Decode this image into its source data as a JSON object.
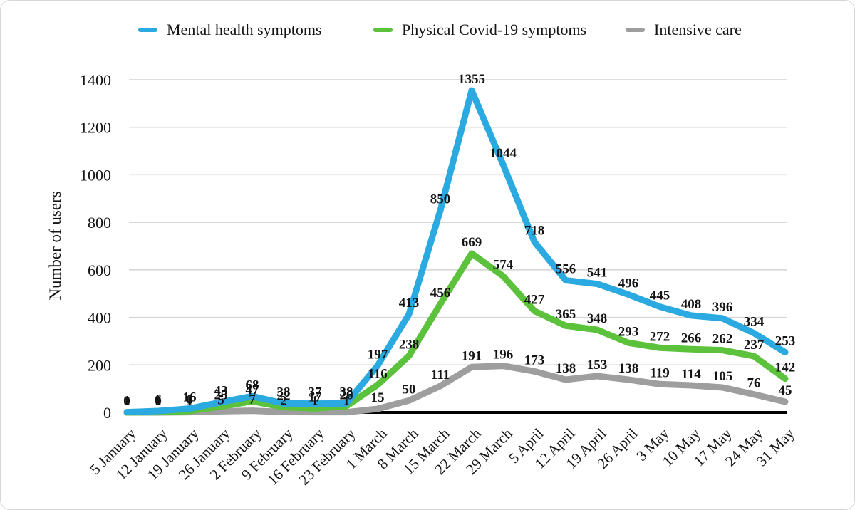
{
  "page": {
    "background": "#ffffff",
    "card_border_color": "#d6d6d6"
  },
  "legend": [
    {
      "label": "Mental health symptoms",
      "color": "#2BA9E1",
      "marker": "dash-icon"
    },
    {
      "label": "Physical Covid-19 symptoms",
      "color": "#5CC23C",
      "marker": "dash-icon"
    },
    {
      "label": "Intensive care",
      "color": "#9E9E9E",
      "marker": "dash-icon"
    }
  ],
  "chart_data": {
    "type": "line",
    "title": "",
    "xlabel": "",
    "ylabel": "Number of users",
    "ylim": [
      0,
      1400
    ],
    "yticks": [
      0,
      200,
      400,
      600,
      800,
      1000,
      1200,
      1400
    ],
    "grid": "horizontal-only",
    "gridline_color": "#d3d3d3",
    "axis_line_color": "#000000",
    "legend_position": "top",
    "data_labels": true,
    "categories": [
      "5 January",
      "12 January",
      "19 January",
      "26 January",
      "2 February",
      "9 February",
      "16 February",
      "23 February",
      "1 March",
      "8 March",
      "15 March",
      "22 March",
      "29 March",
      "5 April",
      "12 April",
      "19 April",
      "26 April",
      "3 May",
      "10 May",
      "17 May",
      "24 May",
      "31 May"
    ],
    "series": [
      {
        "name": "Mental health symptoms",
        "color": "#2BA9E1",
        "values": [
          1,
          6,
          16,
          43,
          68,
          38,
          37,
          38,
          197,
          413,
          850,
          1355,
          1044,
          718,
          556,
          541,
          496,
          445,
          408,
          396,
          334,
          253
        ]
      },
      {
        "name": "Physical Covid-19 symptoms",
        "color": "#5CC23C",
        "values": [
          0,
          1,
          6,
          25,
          47,
          22,
          17,
          26,
          116,
          238,
          456,
          669,
          574,
          427,
          365,
          348,
          293,
          272,
          266,
          262,
          237,
          142
        ]
      },
      {
        "name": "Intensive care",
        "color": "#9E9E9E",
        "values": [
          0,
          0,
          1,
          5,
          7,
          2,
          1,
          1,
          15,
          50,
          111,
          191,
          196,
          173,
          138,
          153,
          138,
          119,
          114,
          105,
          76,
          45
        ]
      }
    ]
  }
}
